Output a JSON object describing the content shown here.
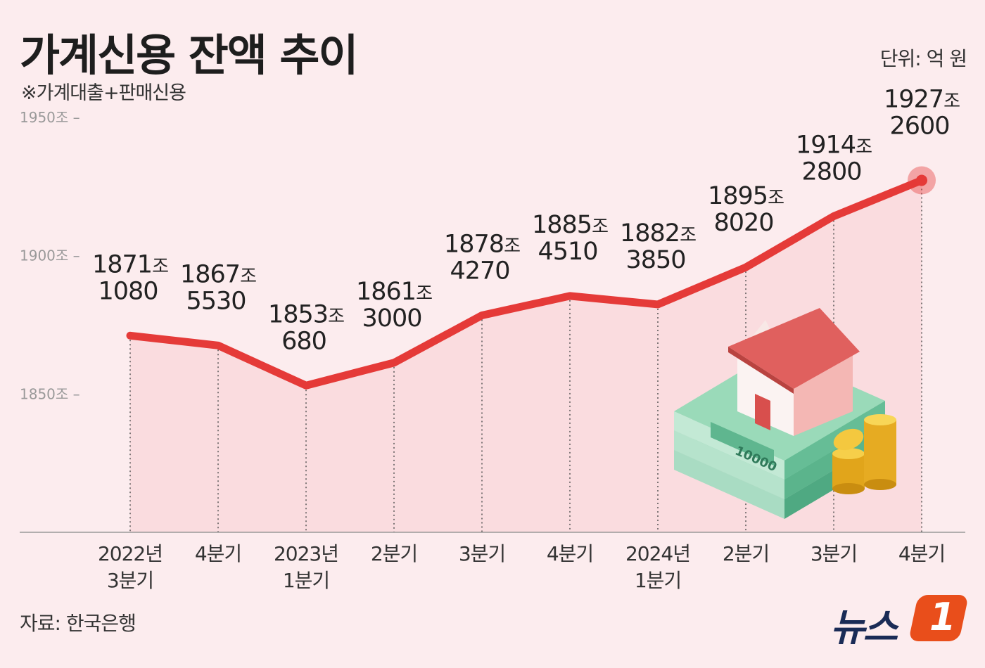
{
  "header": {
    "title": "가계신용 잔액 추이",
    "subtitle": "※가계대출+판매신용",
    "unit": "단위: 억 원"
  },
  "footer": {
    "source": "자료: 한국은행",
    "logo_text": "뉴스",
    "logo_mark": "1"
  },
  "colors": {
    "background": "#fcecee",
    "line": "#e53a38",
    "area": "#f9d9dc",
    "highlight": "#e53a38"
  },
  "chart_data": {
    "type": "line",
    "title": "가계신용 잔액 추이",
    "subtitle": "※가계대출+판매신용",
    "unit": "단위: 억 원",
    "ylim": [
      1800,
      1950
    ],
    "yticks": [
      {
        "value": 1950,
        "label": "1950조 –"
      },
      {
        "value": 1900,
        "label": "1900조 –"
      },
      {
        "value": 1850,
        "label": "1850조 –"
      }
    ],
    "categories": [
      [
        "2022년",
        "3분기"
      ],
      [
        "4분기"
      ],
      [
        "2023년",
        "1분기"
      ],
      [
        "2분기"
      ],
      [
        "3분기"
      ],
      [
        "4분기"
      ],
      [
        "2024년",
        "1분기"
      ],
      [
        "2분기"
      ],
      [
        "3분기"
      ],
      [
        "4분기"
      ]
    ],
    "values": [
      1871.108,
      1867.553,
      1853.068,
      1861.3,
      1878.427,
      1885.451,
      1882.385,
      1895.802,
      1914.28,
      1927.26
    ],
    "data_labels": [
      {
        "jo": "1871",
        "eok": "1080"
      },
      {
        "jo": "1867",
        "eok": "5530"
      },
      {
        "jo": "1853",
        "eok": "680"
      },
      {
        "jo": "1861",
        "eok": "3000"
      },
      {
        "jo": "1878",
        "eok": "4270"
      },
      {
        "jo": "1885",
        "eok": "4510"
      },
      {
        "jo": "1882",
        "eok": "3850"
      },
      {
        "jo": "1895",
        "eok": "8020"
      },
      {
        "jo": "1914",
        "eok": "2800"
      },
      {
        "jo": "1927",
        "eok": "2600"
      }
    ],
    "jo_suffix": "조",
    "illustration_note": "10000"
  }
}
